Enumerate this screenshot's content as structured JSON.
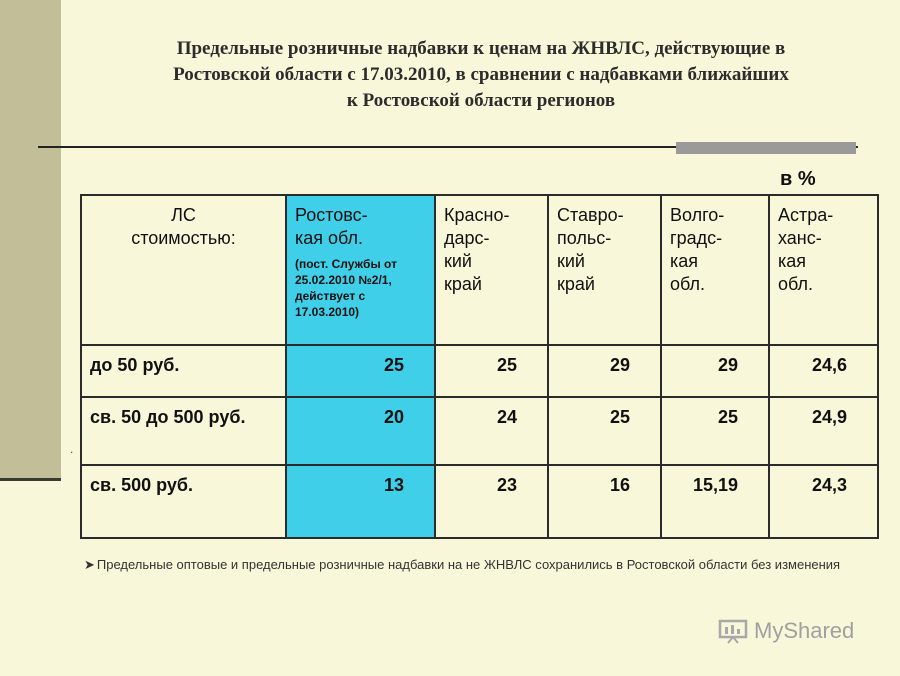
{
  "title": {
    "line1": "Предельные розничные надбавки к ценам на  ЖНВЛС, действующие в",
    "line2": "Ростовской области с 17.03.2010,  в сравнении с надбавками ближайших",
    "line3": "к Ростовской области регионов"
  },
  "unit": "в %",
  "table": {
    "header": {
      "col0": [
        "ЛС",
        "стоимостью:"
      ],
      "col1": {
        "lines": [
          "Ростовс-",
          "кая обл."
        ],
        "note": "(пост. Службы от 25.02.2010 №2/1, действует с 17.03.2010)"
      },
      "col2": [
        "Красно-",
        "дарс-",
        "кий",
        "край"
      ],
      "col3": [
        "Ставро-",
        "польс-",
        "кий",
        "край"
      ],
      "col4": [
        "Волго-",
        "градс-",
        "кая",
        "обл."
      ],
      "col5": [
        "Астра-",
        "ханс-",
        "кая",
        "обл."
      ]
    },
    "rows": [
      {
        "label": "до 50 руб.",
        "values": [
          "25",
          "25",
          "29",
          "29",
          "24,6"
        ]
      },
      {
        "label": "св. 50 до 500 руб.",
        "values": [
          "20",
          "24",
          "25",
          "25",
          "24,9"
        ]
      },
      {
        "label": "св. 500 руб.",
        "values": [
          "13",
          "23",
          "16",
          "15,19",
          "24,3"
        ]
      }
    ]
  },
  "footnote": "Предельные оптовые и предельные розничные надбавки на не ЖНВЛС сохранились в Ростовской области без изменения",
  "watermark": "MyShared",
  "colors": {
    "highlight": "#3fcfe8",
    "background": "#f9f7d9",
    "band": "#c2bf98"
  }
}
